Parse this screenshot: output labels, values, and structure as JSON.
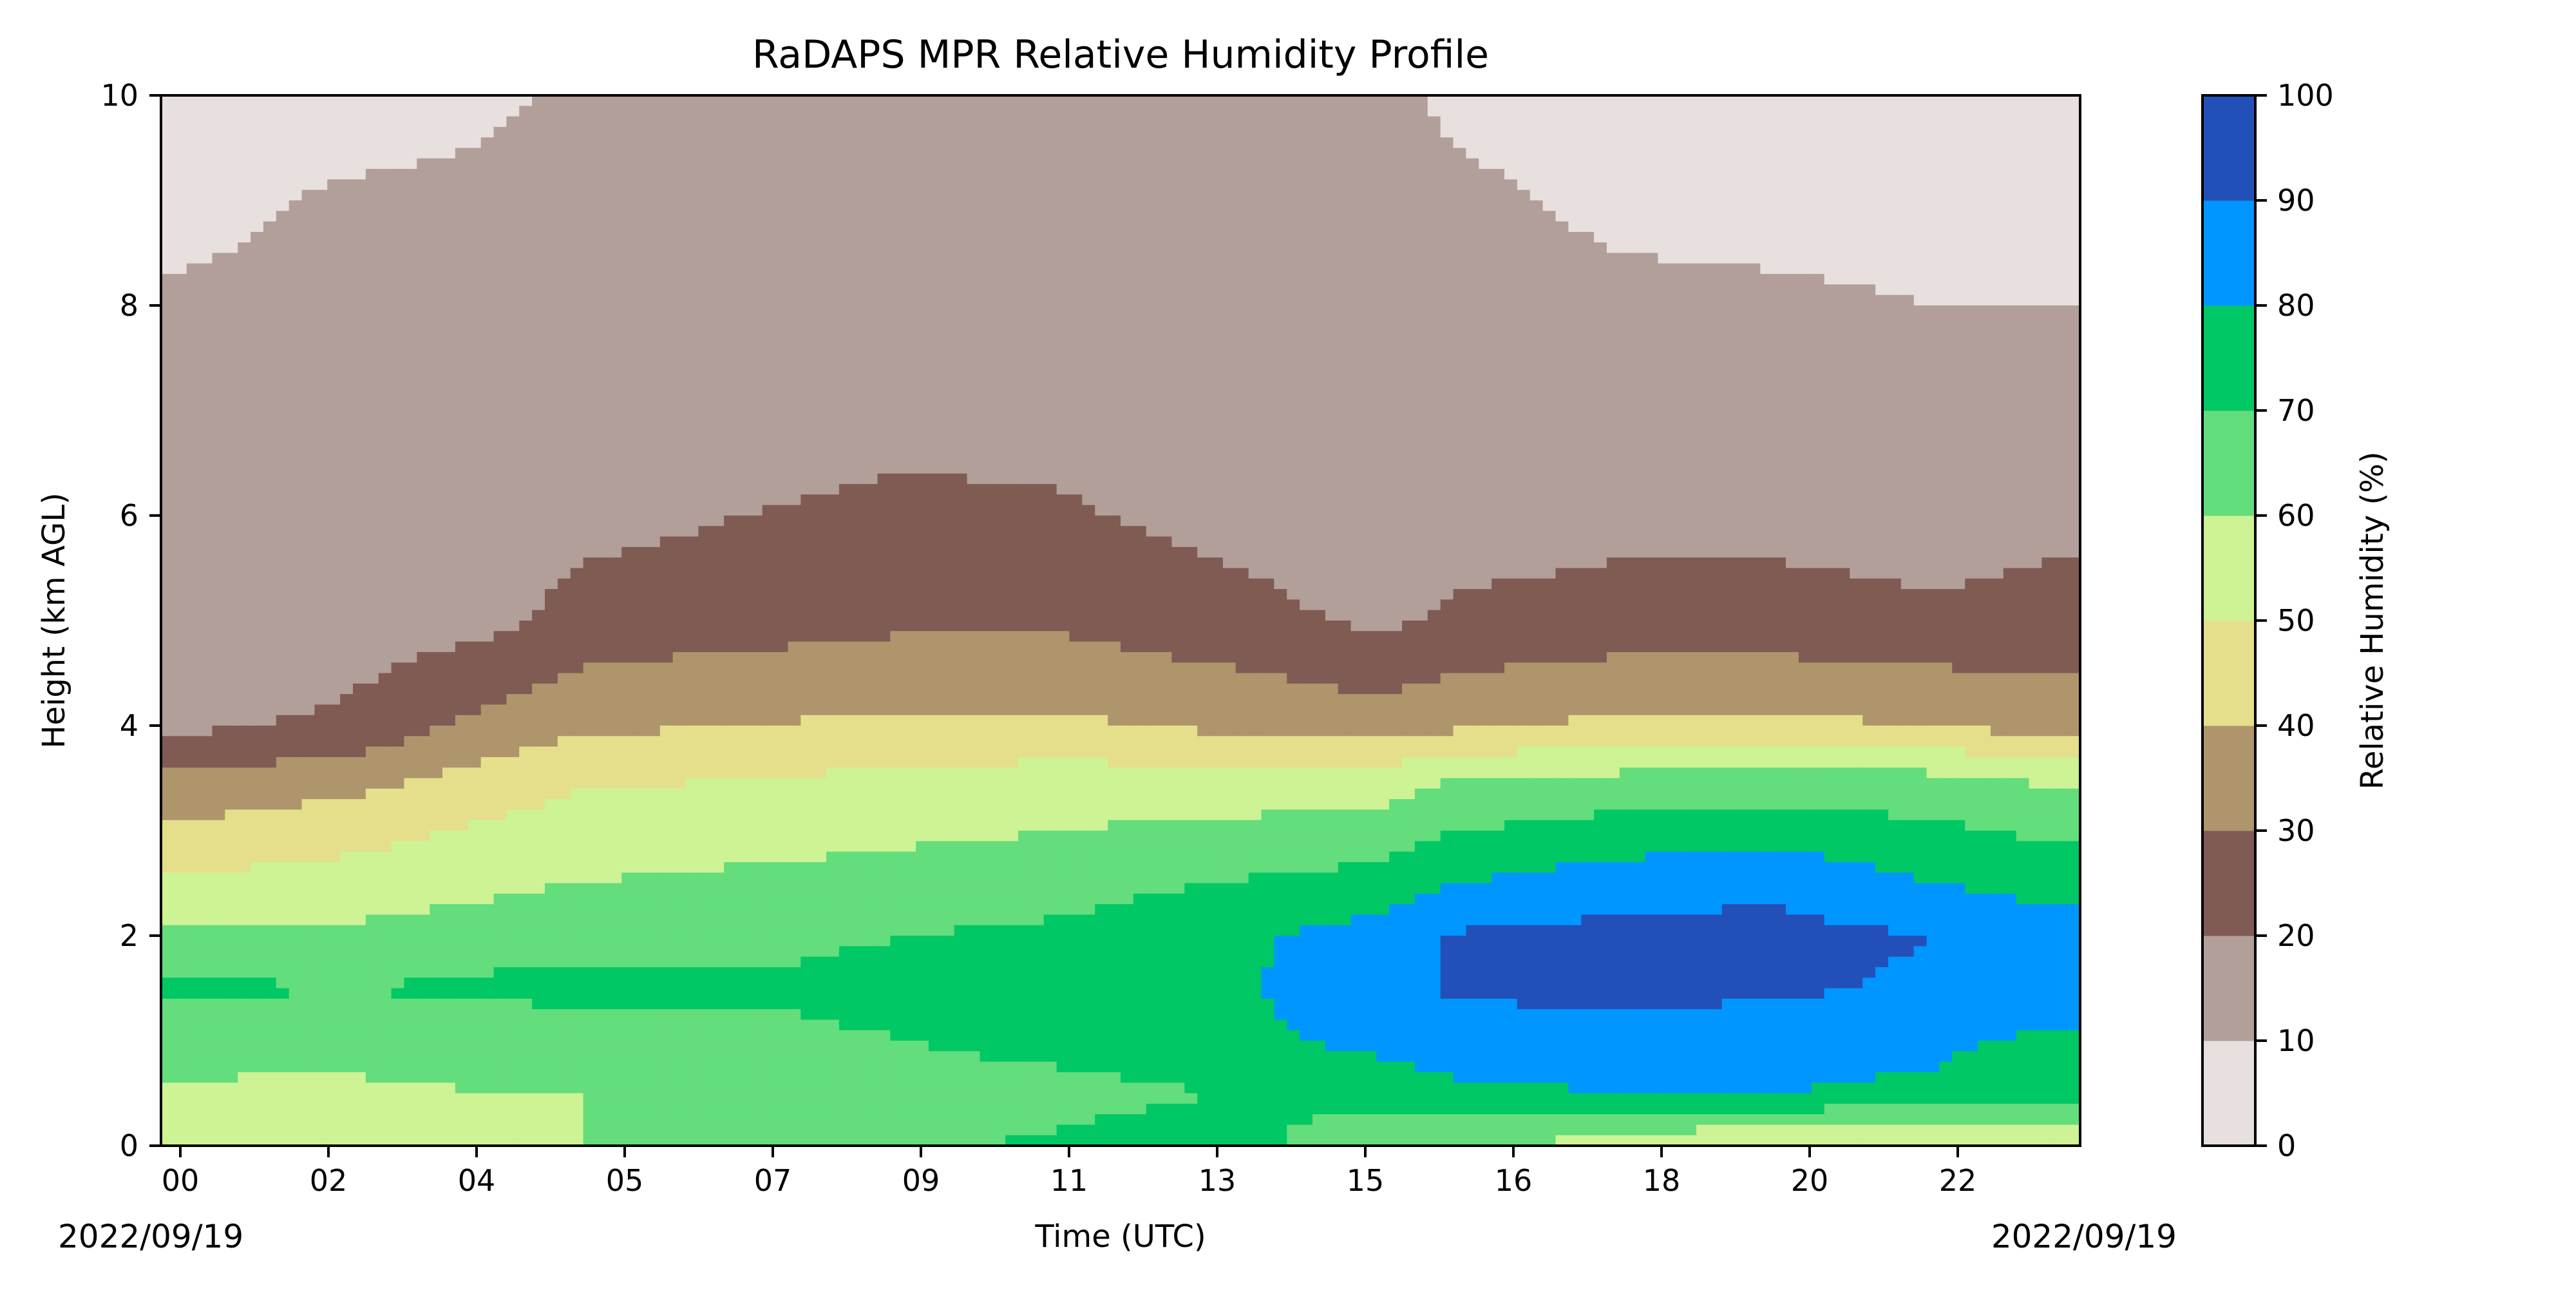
{
  "chart_data": {
    "type": "heatmap",
    "title": "RaDAPS MPR Relative Humidity Profile",
    "xlabel": "Time (UTC)",
    "ylabel": "Height (km AGL)",
    "x_ticks": [
      "00",
      "02",
      "04",
      "05",
      "07",
      "09",
      "11",
      "13",
      "15",
      "16",
      "18",
      "20",
      "22"
    ],
    "x_range": [
      -0.3,
      23.8
    ],
    "y_ticks": [
      0,
      2,
      4,
      6,
      8,
      10
    ],
    "ylim": [
      0,
      10
    ],
    "start_date": "2022/09/19",
    "end_date": "2022/09/19",
    "grid": false,
    "colorbar": {
      "label": "Relative Humidity (%)",
      "levels": [
        0,
        10,
        20,
        30,
        40,
        50,
        60,
        70,
        80,
        90,
        100
      ],
      "colors": [
        "#e7e0df",
        "#b29f9a",
        "#7f5b53",
        "#ae956b",
        "#e5df8c",
        "#cdf394",
        "#64dd7c",
        "#00c864",
        "#0096ff",
        "#2350b8"
      ]
    },
    "rh_field": {
      "times_hour": [
        0,
        2,
        4,
        5,
        7,
        9,
        11,
        13,
        15,
        16,
        18,
        20,
        22,
        23.5
      ],
      "heights_km": [
        0,
        0.5,
        1,
        1.5,
        2,
        2.5,
        3,
        3.5,
        4,
        5,
        6,
        7,
        8,
        9,
        10
      ],
      "values": [
        [
          52,
          55,
          58,
          60,
          62,
          68,
          72,
          76,
          60,
          62,
          55,
          48,
          48,
          52
        ],
        [
          58,
          58,
          60,
          60,
          62,
          64,
          66,
          70,
          75,
          78,
          80,
          80,
          78,
          72
        ],
        [
          65,
          64,
          65,
          66,
          68,
          70,
          74,
          78,
          82,
          85,
          86,
          85,
          82,
          78
        ],
        [
          72,
          70,
          72,
          72,
          71,
          72,
          74,
          78,
          85,
          92,
          92,
          92,
          88,
          86
        ],
        [
          62,
          62,
          66,
          68,
          68,
          70,
          72,
          78,
          84,
          91,
          93,
          93,
          90,
          86
        ],
        [
          52,
          54,
          58,
          60,
          62,
          64,
          66,
          70,
          74,
          80,
          85,
          88,
          80,
          75
        ],
        [
          42,
          46,
          52,
          56,
          56,
          58,
          60,
          62,
          64,
          70,
          74,
          76,
          72,
          68
        ],
        [
          32,
          36,
          44,
          48,
          50,
          52,
          54,
          54,
          54,
          60,
          62,
          64,
          62,
          58
        ],
        [
          18,
          22,
          34,
          38,
          40,
          42,
          42,
          38,
          35,
          38,
          42,
          42,
          40,
          35
        ],
        [
          12,
          14,
          18,
          24,
          26,
          28,
          28,
          24,
          18,
          22,
          24,
          24,
          22,
          24
        ],
        [
          11,
          12,
          14,
          17,
          20,
          22,
          21,
          17,
          14,
          15,
          17,
          17,
          15,
          17
        ],
        [
          11,
          12,
          13,
          14,
          15,
          17,
          17,
          14,
          13,
          13,
          13,
          13,
          12,
          13
        ],
        [
          11,
          12,
          13,
          13,
          13,
          13,
          13,
          13,
          12,
          12,
          11,
          11,
          10,
          10
        ],
        [
          8,
          11,
          12,
          13,
          13,
          13,
          12,
          12,
          12,
          11,
          9,
          8,
          8,
          8
        ],
        [
          5,
          6,
          9,
          12,
          13,
          13,
          12,
          12,
          11,
          9,
          7,
          6,
          5,
          5
        ]
      ]
    }
  }
}
